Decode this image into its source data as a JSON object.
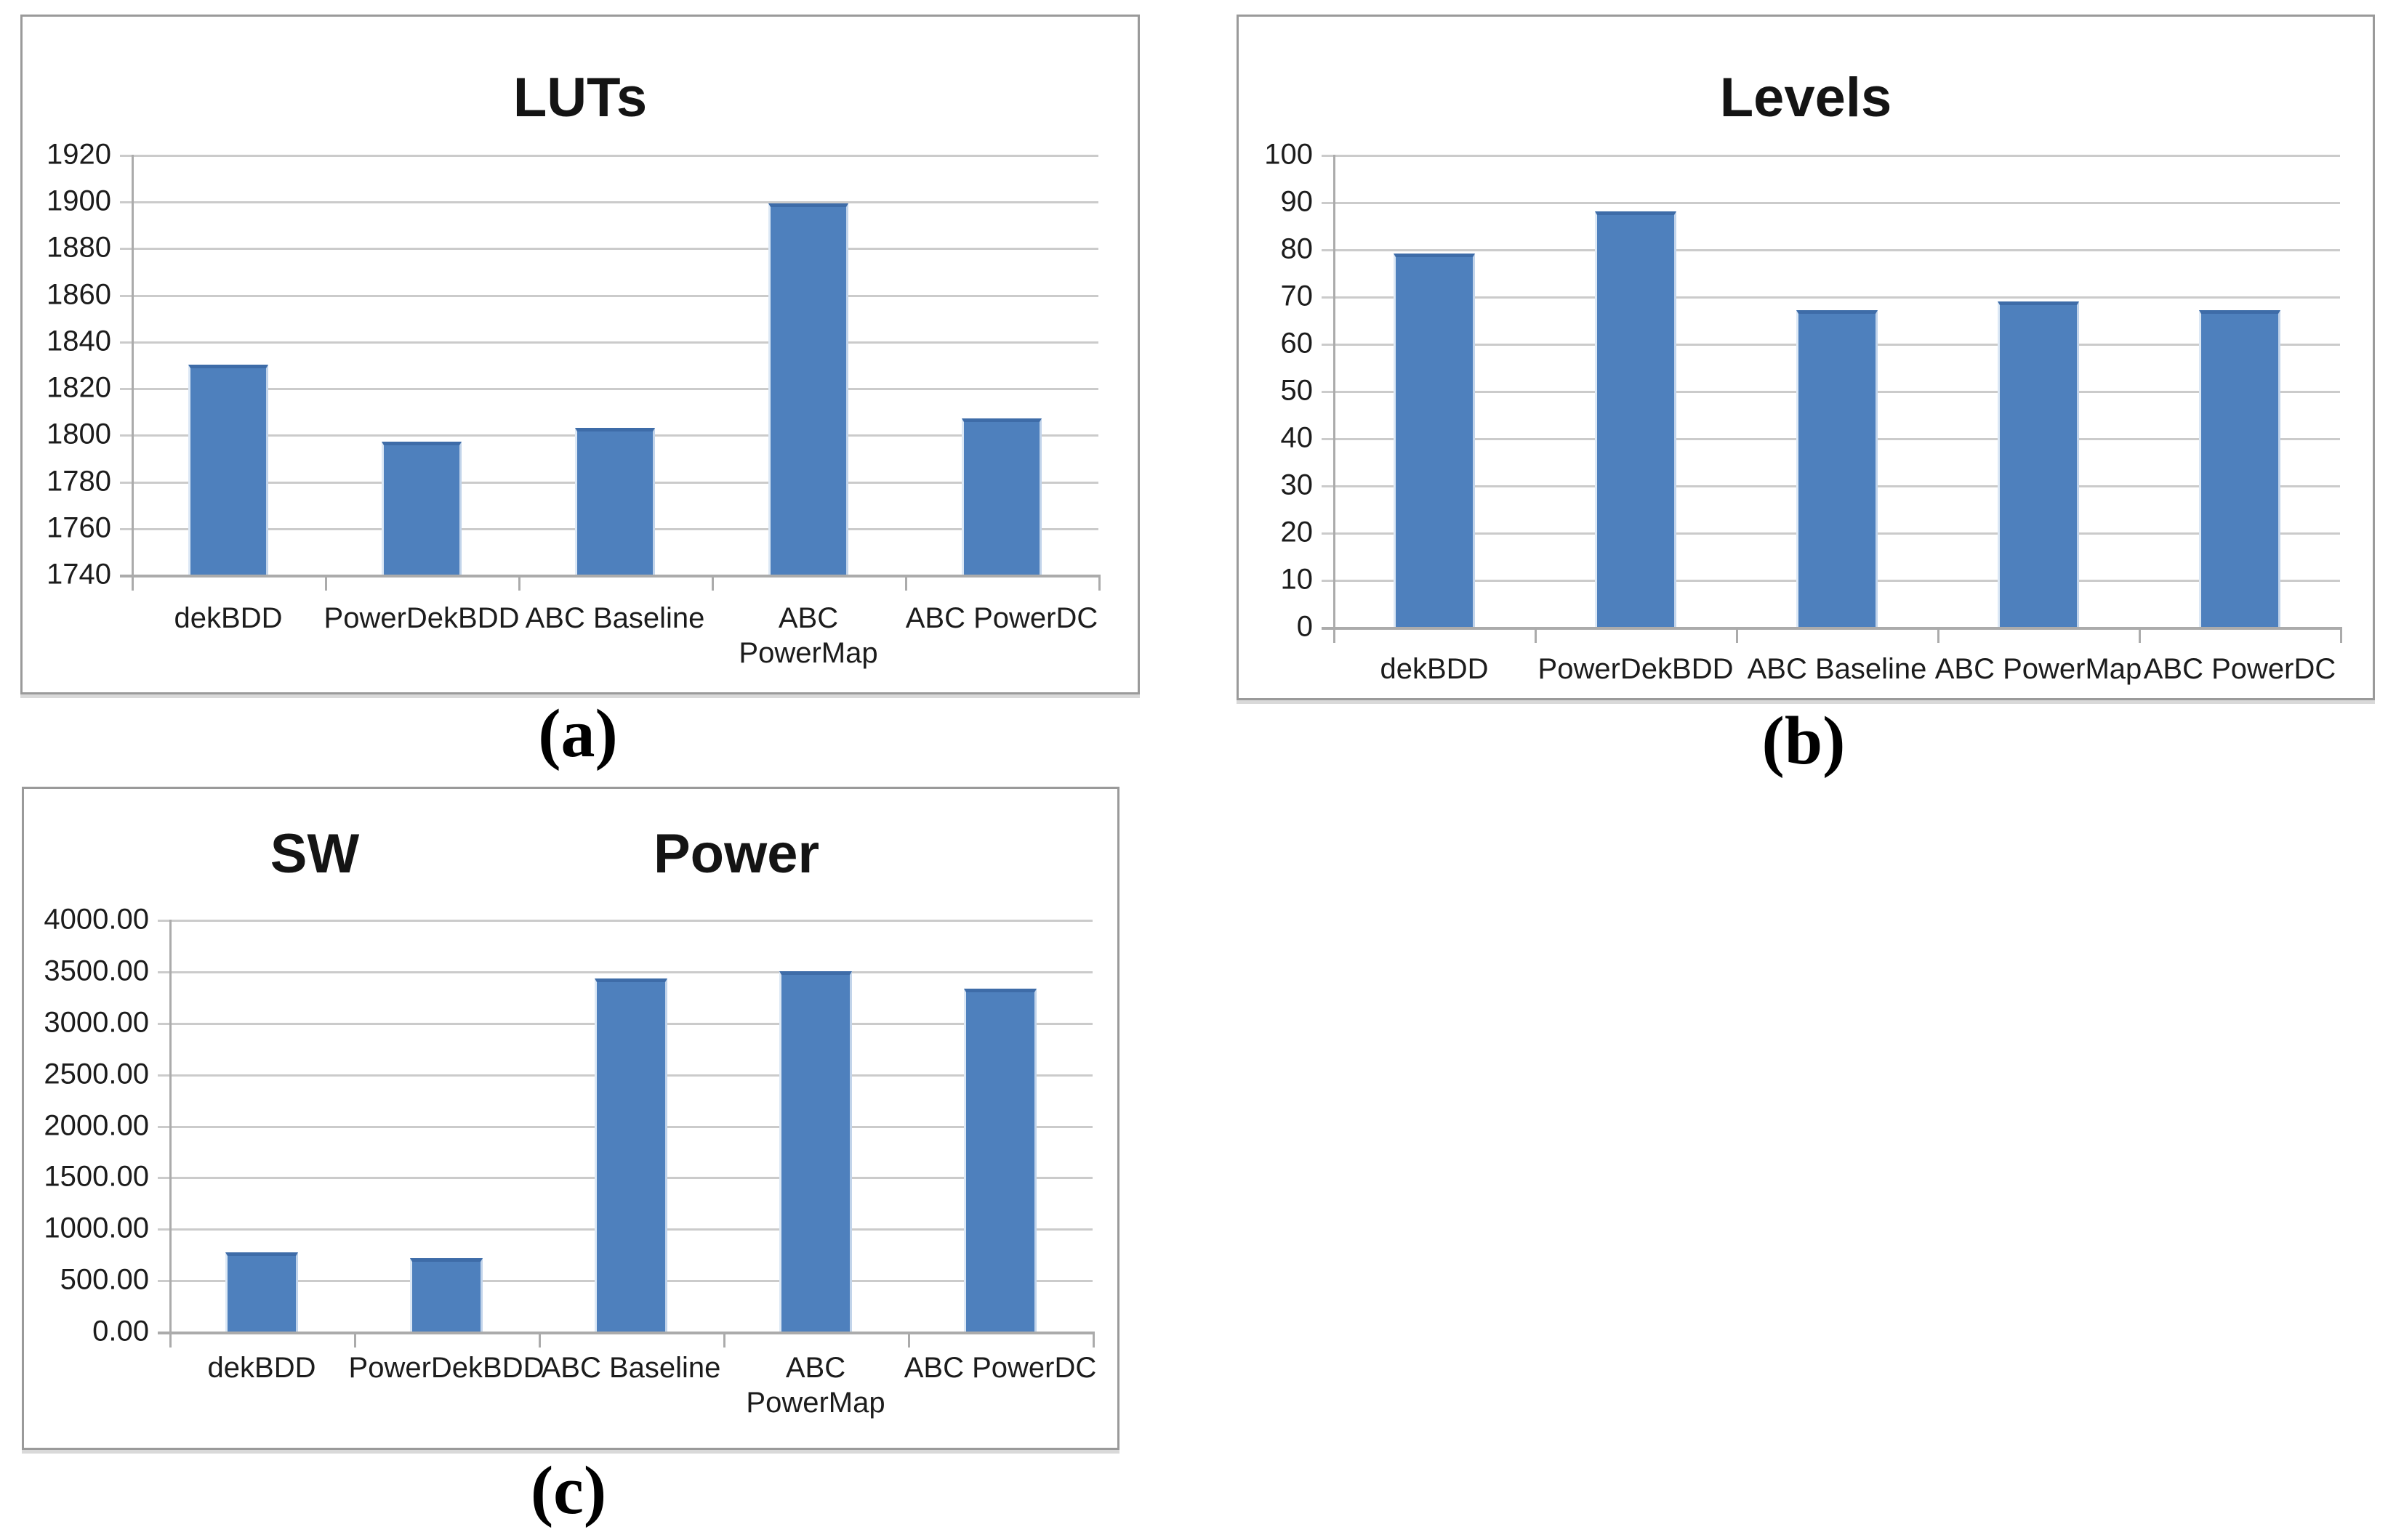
{
  "figure": {
    "captions": [
      "(a)",
      "(b)",
      "(c)"
    ]
  },
  "colors": {
    "bar_fill": "#4E80BD",
    "bar_top_edge": "#3E6CA8",
    "gridline": "#CBCBCB",
    "axis_line": "#ABABAB",
    "panel_border": "#9A9A9A",
    "text": "#1C1C1C"
  },
  "chart_data": [
    {
      "id": "luts",
      "type": "bar",
      "title": "LUTs",
      "xlabel": "",
      "ylabel": "",
      "grid": true,
      "legend": "none",
      "categories": [
        "dekBDD",
        "PowerDekBDD",
        "ABC Baseline",
        "ABC PowerMap",
        "ABC PowerDC"
      ],
      "values": [
        1830,
        1797,
        1803,
        1899,
        1807
      ],
      "ylim": [
        1740,
        1920
      ],
      "ytick_step": 20,
      "yticks": [
        "1920",
        "1900",
        "1880",
        "1860",
        "1840",
        "1820",
        "1800",
        "1780",
        "1760",
        "1740"
      ],
      "xlabel_lines": [
        [
          "dekBDD"
        ],
        [
          "PowerDekBDD"
        ],
        [
          "ABC Baseline"
        ],
        [
          "ABC",
          "PowerMap"
        ],
        [
          "ABC PowerDC"
        ]
      ]
    },
    {
      "id": "levels",
      "type": "bar",
      "title": "Levels",
      "xlabel": "",
      "ylabel": "",
      "grid": true,
      "legend": "none",
      "categories": [
        "dekBDD",
        "PowerDekBDD",
        "ABC Baseline",
        "ABC PowerMap",
        "ABC PowerDC"
      ],
      "values": [
        79,
        88,
        67,
        69,
        67
      ],
      "ylim": [
        0,
        100
      ],
      "ytick_step": 10,
      "yticks": [
        "100",
        "90",
        "80",
        "70",
        "60",
        "50",
        "40",
        "30",
        "20",
        "10",
        "0"
      ],
      "xlabel_lines": [
        [
          "dekBDD"
        ],
        [
          "PowerDekBDD"
        ],
        [
          "ABC Baseline"
        ],
        [
          "ABC PowerMap"
        ],
        [
          "ABC PowerDC"
        ]
      ]
    },
    {
      "id": "sw-power",
      "type": "bar",
      "title": "SW Power",
      "title_parts": [
        "SW",
        "Power"
      ],
      "xlabel": "",
      "ylabel": "",
      "grid": true,
      "legend": "none",
      "categories": [
        "dekBDD",
        "PowerDekBDD",
        "ABC Baseline",
        "ABC PowerMap",
        "ABC PowerDC"
      ],
      "values": [
        770,
        710,
        3430,
        3500,
        3330
      ],
      "ylim": [
        0,
        4000
      ],
      "ytick_step": 500,
      "yticks": [
        "4000.00",
        "3500.00",
        "3000.00",
        "2500.00",
        "2000.00",
        "1500.00",
        "1000.00",
        "500.00",
        "0.00"
      ],
      "xlabel_lines": [
        [
          "dekBDD"
        ],
        [
          "PowerDekBDD"
        ],
        [
          "ABC Baseline"
        ],
        [
          "ABC",
          "PowerMap"
        ],
        [
          "ABC PowerDC"
        ]
      ]
    }
  ]
}
